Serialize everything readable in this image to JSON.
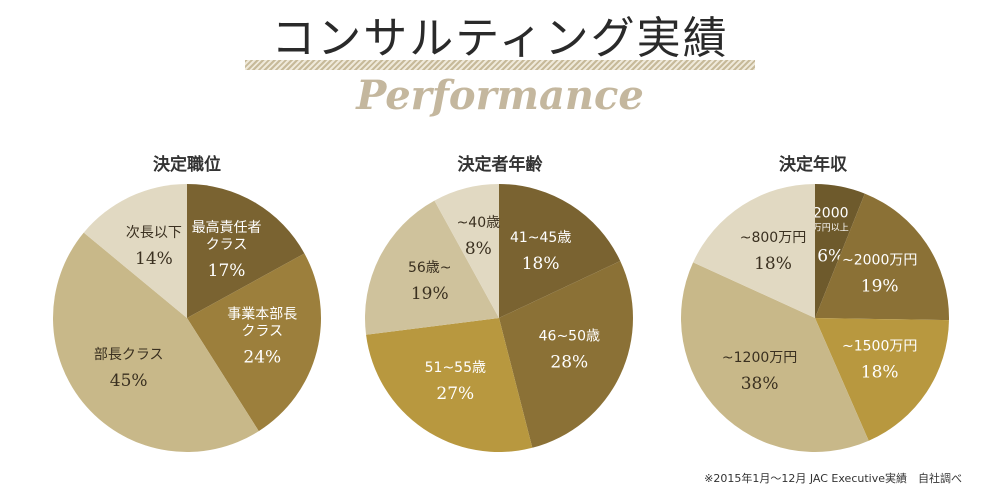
{
  "header": {
    "title": "コンサルティング実績",
    "subtitle": "Performance"
  },
  "footnote": "※2015年1月～12月 JAC Executive実績　自社調べ",
  "chart_data": [
    {
      "type": "pie",
      "title": "決定職位",
      "slices": [
        {
          "label": [
            "最高責任者",
            "クラス"
          ],
          "value": 17,
          "display": "17%",
          "color": "#7a6331",
          "text_color": "#ffffff"
        },
        {
          "label": [
            "事業本部長",
            "クラス"
          ],
          "value": 24,
          "display": "24%",
          "color": "#9c7f3c",
          "text_color": "#ffffff"
        },
        {
          "label": [
            "部長クラス"
          ],
          "value": 45,
          "display": "45%",
          "color": "#c8b889",
          "text_color": "#3a3020"
        },
        {
          "label": [
            "次長以下"
          ],
          "value": 14,
          "display": "14%",
          "color": "#e1d9c2",
          "text_color": "#3a3020"
        }
      ]
    },
    {
      "type": "pie",
      "title": "決定者年齢",
      "slices": [
        {
          "label": [
            "41~45歳"
          ],
          "value": 18,
          "display": "18%",
          "color": "#7a6331",
          "text_color": "#ffffff"
        },
        {
          "label": [
            "46~50歳"
          ],
          "value": 28,
          "display": "28%",
          "color": "#8b7136",
          "text_color": "#ffffff"
        },
        {
          "label": [
            "51~55歳"
          ],
          "value": 27,
          "display": "27%",
          "color": "#b8983f",
          "text_color": "#ffffff"
        },
        {
          "label": [
            "56歳~"
          ],
          "value": 19,
          "display": "19%",
          "color": "#cfc29c",
          "text_color": "#3a3020"
        },
        {
          "label": [
            "~40歳"
          ],
          "value": 8,
          "display": "8%",
          "color": "#e1d9c2",
          "text_color": "#3a3020"
        }
      ]
    },
    {
      "type": "pie",
      "title": "決定年収",
      "slices": [
        {
          "label": [
            "2000",
            "万円以上"
          ],
          "value": 6,
          "display": "6%",
          "color": "#6e5a2c",
          "text_color": "#ffffff"
        },
        {
          "label": [
            "~2000万円"
          ],
          "value": 19,
          "display": "19%",
          "color": "#8b7136",
          "text_color": "#ffffff"
        },
        {
          "label": [
            "~1500万円"
          ],
          "value": 18,
          "display": "18%",
          "color": "#b8983f",
          "text_color": "#ffffff"
        },
        {
          "label": [
            "~1200万円"
          ],
          "value": 38,
          "display": "38%",
          "color": "#c8b889",
          "text_color": "#3a3020"
        },
        {
          "label": [
            "~800万円"
          ],
          "value": 18,
          "display": "18%",
          "color": "#e1d9c2",
          "text_color": "#3a3020"
        }
      ]
    }
  ]
}
